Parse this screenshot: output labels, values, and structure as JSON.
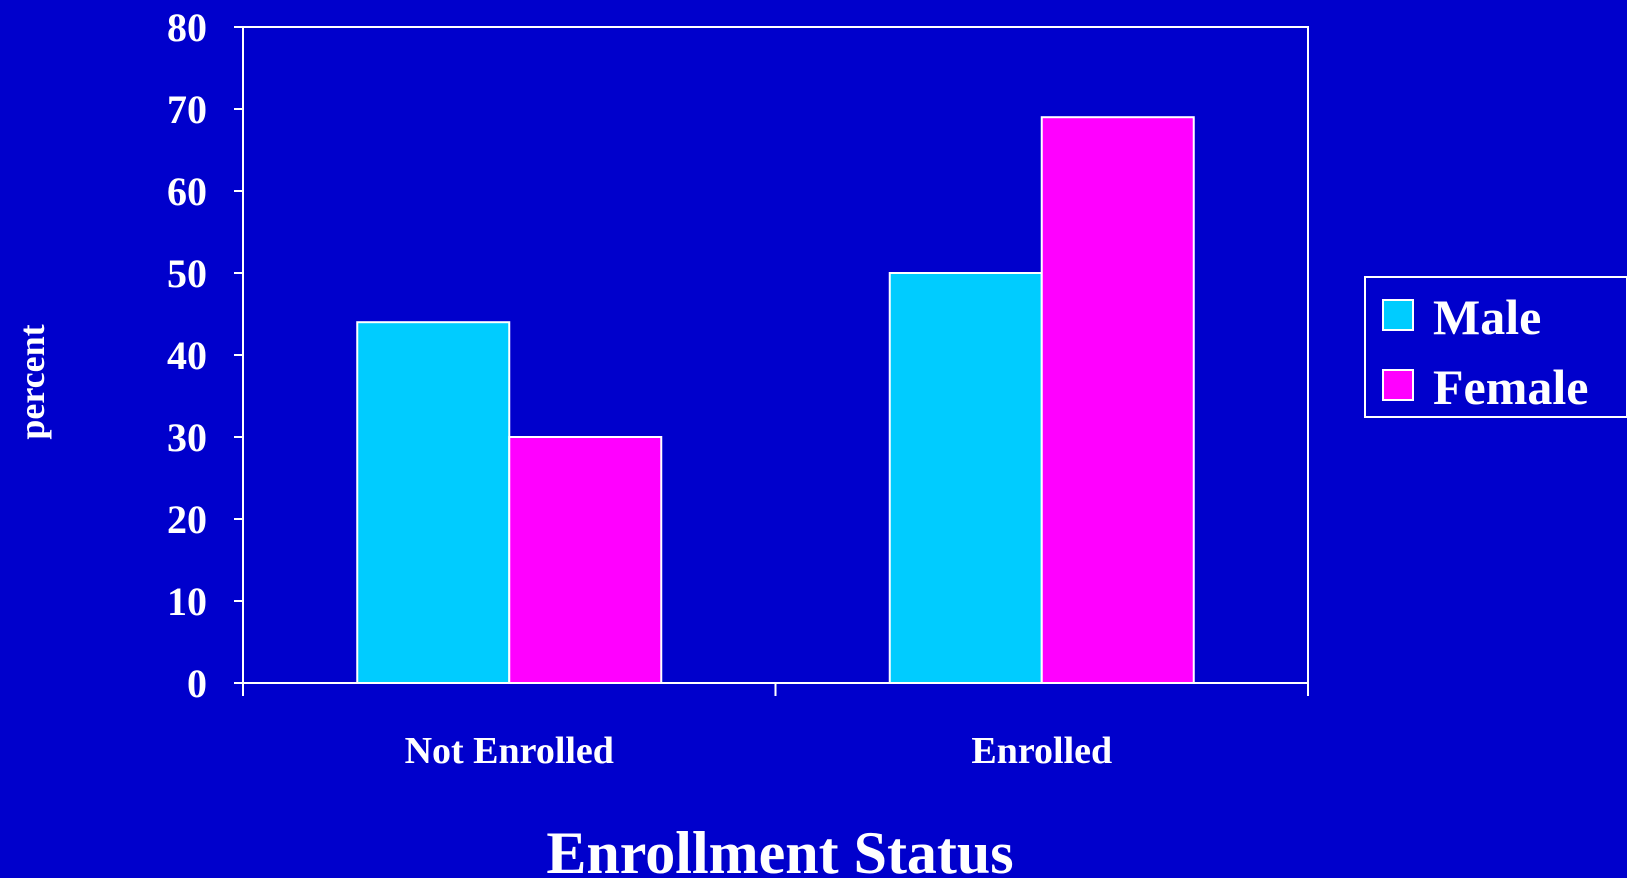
{
  "chart_data": {
    "type": "bar",
    "title": "",
    "xlabel": "Enrollment Status",
    "ylabel": "percent",
    "categories": [
      "Not Enrolled",
      "Enrolled"
    ],
    "series": [
      {
        "name": "Male",
        "values": [
          44,
          50
        ],
        "color": "#00CCFF"
      },
      {
        "name": "Female",
        "values": [
          30,
          69
        ],
        "color": "#FF00FF"
      }
    ],
    "ylim": [
      0,
      80
    ],
    "yticks": [
      "0",
      "10",
      "20",
      "30",
      "40",
      "50",
      "60",
      "70",
      "80"
    ],
    "grid": false,
    "legend_position": "right",
    "background_color": "#0000CC",
    "text_color": "#FFFFFF"
  }
}
